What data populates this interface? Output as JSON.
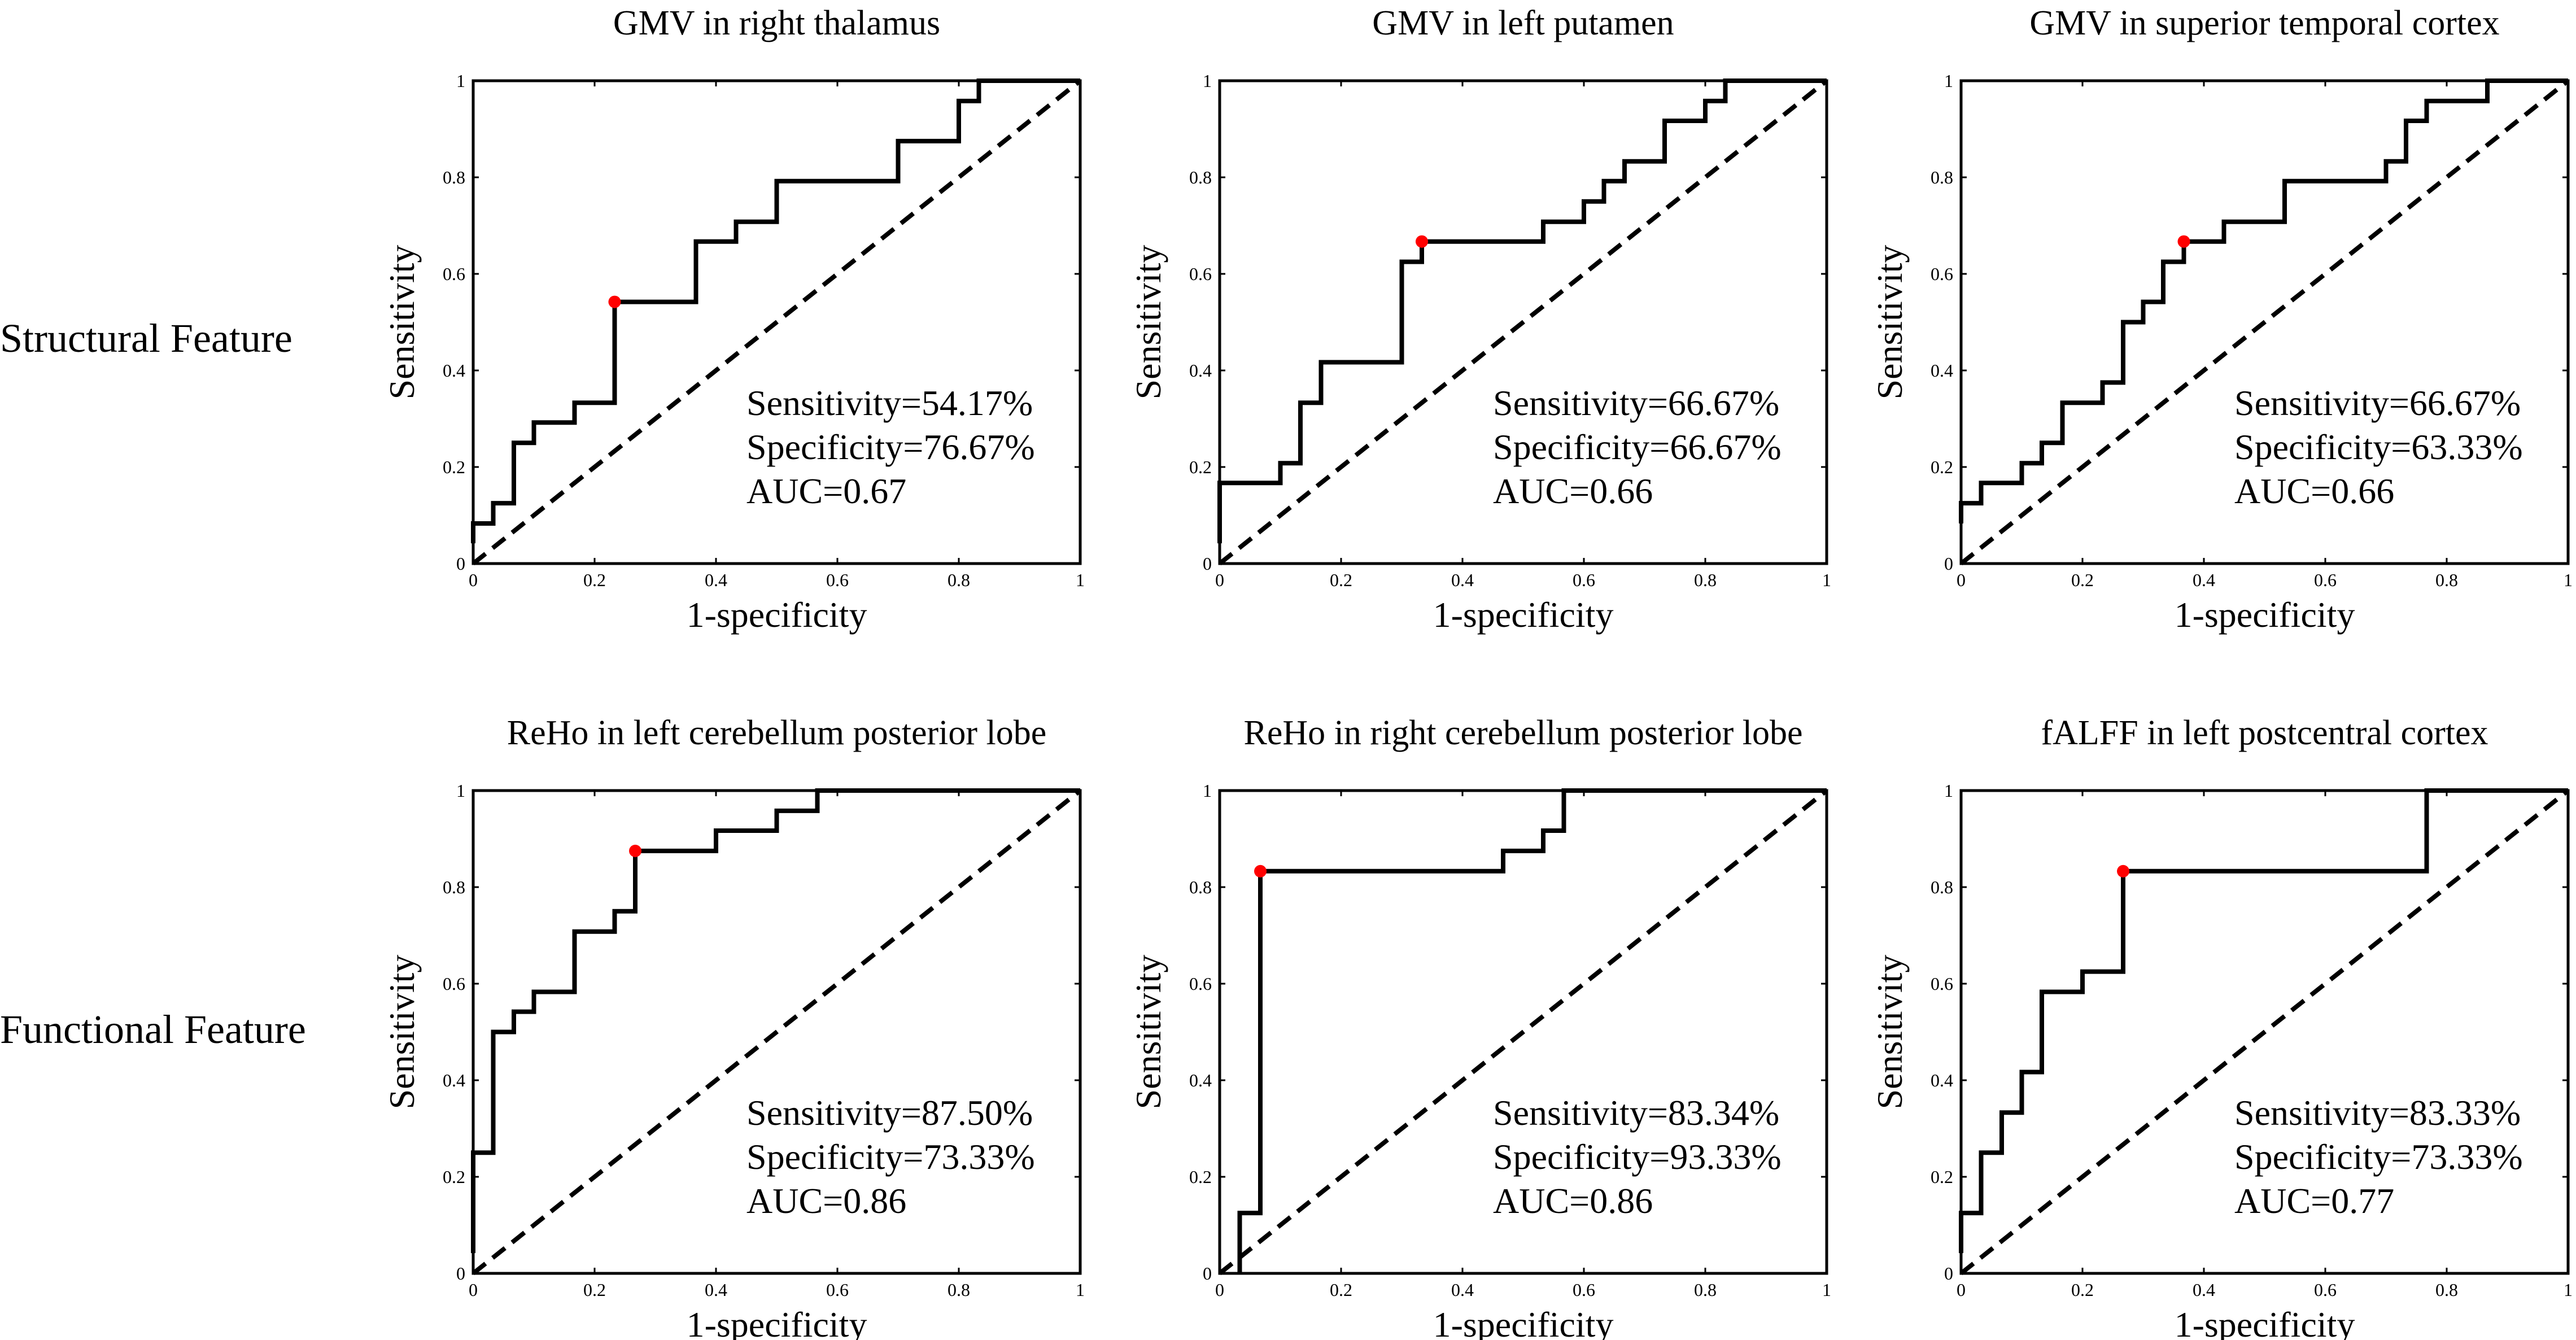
{
  "rows": [
    {
      "label": "Structural Feature"
    },
    {
      "label": "Functional Feature"
    }
  ],
  "colors": {
    "roc_curve": "#000000",
    "chance_line": "#000000",
    "cutoff_point": "#ff0000",
    "background": "#ffffff"
  },
  "chart_data": [
    {
      "type": "line",
      "title": "GMV in right thalamus",
      "xlabel": "1-specificity",
      "ylabel": "Sensitivity",
      "xlim": [
        0,
        1
      ],
      "ylim": [
        0,
        1
      ],
      "xticks": [
        "0",
        "0.2",
        "0.4",
        "0.6",
        "0.8",
        "1"
      ],
      "yticks": [
        "0",
        "0.2",
        "0.4",
        "0.6",
        "0.8",
        "1"
      ],
      "series": [
        {
          "name": "ROC",
          "x": [
            0,
            0,
            0.033,
            0.033,
            0.067,
            0.067,
            0.1,
            0.1,
            0.167,
            0.167,
            0.233,
            0.233,
            0.367,
            0.367,
            0.433,
            0.433,
            0.5,
            0.5,
            0.7,
            0.7,
            0.8,
            0.8,
            0.833,
            0.833,
            1
          ],
          "y": [
            0.042,
            0.083,
            0.083,
            0.125,
            0.125,
            0.25,
            0.25,
            0.292,
            0.292,
            0.333,
            0.333,
            0.542,
            0.542,
            0.667,
            0.667,
            0.708,
            0.708,
            0.792,
            0.792,
            0.875,
            0.875,
            0.958,
            0.958,
            1,
            1
          ]
        },
        {
          "name": "Chance",
          "x": [
            0,
            1
          ],
          "y": [
            0,
            1
          ]
        }
      ],
      "cutoff": {
        "x": 0.233,
        "y": 0.542
      },
      "stats": {
        "sensitivity": "Sensitivity=54.17%",
        "specificity": "Specificity=76.67%",
        "auc": "AUC=0.67"
      }
    },
    {
      "type": "line",
      "title": "GMV in left putamen",
      "xlabel": "1-specificity",
      "ylabel": "Sensitivity",
      "xlim": [
        0,
        1
      ],
      "ylim": [
        0,
        1
      ],
      "xticks": [
        "0",
        "0.2",
        "0.4",
        "0.6",
        "0.8",
        "1"
      ],
      "yticks": [
        "0",
        "0.2",
        "0.4",
        "0.6",
        "0.8",
        "1"
      ],
      "series": [
        {
          "name": "ROC",
          "x": [
            0,
            0,
            0.1,
            0.1,
            0.133,
            0.133,
            0.167,
            0.167,
            0.3,
            0.3,
            0.333,
            0.333,
            0.533,
            0.533,
            0.6,
            0.6,
            0.633,
            0.633,
            0.667,
            0.667,
            0.733,
            0.733,
            0.8,
            0.8,
            0.833,
            0.833,
            1
          ],
          "y": [
            0.042,
            0.167,
            0.167,
            0.208,
            0.208,
            0.333,
            0.333,
            0.417,
            0.417,
            0.625,
            0.625,
            0.667,
            0.667,
            0.708,
            0.708,
            0.75,
            0.75,
            0.792,
            0.792,
            0.833,
            0.833,
            0.917,
            0.917,
            0.958,
            0.958,
            1,
            1
          ]
        },
        {
          "name": "Chance",
          "x": [
            0,
            1
          ],
          "y": [
            0,
            1
          ]
        }
      ],
      "cutoff": {
        "x": 0.333,
        "y": 0.667
      },
      "stats": {
        "sensitivity": "Sensitivity=66.67%",
        "specificity": "Specificity=66.67%",
        "auc": "AUC=0.66"
      }
    },
    {
      "type": "line",
      "title": "GMV in superior temporal cortex",
      "xlabel": "1-specificity",
      "ylabel": "Sensitivity",
      "xlim": [
        0,
        1
      ],
      "ylim": [
        0,
        1
      ],
      "xticks": [
        "0",
        "0.2",
        "0.4",
        "0.6",
        "0.8",
        "1"
      ],
      "yticks": [
        "0",
        "0.2",
        "0.4",
        "0.6",
        "0.8",
        "1"
      ],
      "series": [
        {
          "name": "ROC",
          "x": [
            0,
            0,
            0.033,
            0.033,
            0.1,
            0.1,
            0.133,
            0.133,
            0.167,
            0.167,
            0.233,
            0.233,
            0.267,
            0.267,
            0.3,
            0.3,
            0.333,
            0.333,
            0.367,
            0.367,
            0.433,
            0.433,
            0.533,
            0.533,
            0.7,
            0.7,
            0.733,
            0.733,
            0.767,
            0.767,
            0.867,
            0.867,
            1
          ],
          "y": [
            0.083,
            0.125,
            0.125,
            0.167,
            0.167,
            0.208,
            0.208,
            0.25,
            0.25,
            0.333,
            0.333,
            0.375,
            0.375,
            0.5,
            0.5,
            0.542,
            0.542,
            0.625,
            0.625,
            0.667,
            0.667,
            0.708,
            0.708,
            0.792,
            0.792,
            0.833,
            0.833,
            0.917,
            0.917,
            0.958,
            0.958,
            1,
            1
          ]
        },
        {
          "name": "Chance",
          "x": [
            0,
            1
          ],
          "y": [
            0,
            1
          ]
        }
      ],
      "cutoff": {
        "x": 0.367,
        "y": 0.667
      },
      "stats": {
        "sensitivity": "Sensitivity=66.67%",
        "specificity": "Specificity=63.33%",
        "auc": "AUC=0.66"
      }
    },
    {
      "type": "line",
      "title": "ReHo in left cerebellum posterior lobe",
      "xlabel": "1-specificity",
      "ylabel": "Sensitivity",
      "xlim": [
        0,
        1
      ],
      "ylim": [
        0,
        1
      ],
      "xticks": [
        "0",
        "0.2",
        "0.4",
        "0.6",
        "0.8",
        "1"
      ],
      "yticks": [
        "0",
        "0.2",
        "0.4",
        "0.6",
        "0.8",
        "1"
      ],
      "series": [
        {
          "name": "ROC",
          "x": [
            0,
            0,
            0.033,
            0.033,
            0.067,
            0.067,
            0.1,
            0.1,
            0.167,
            0.167,
            0.233,
            0.233,
            0.267,
            0.267,
            0.4,
            0.4,
            0.5,
            0.5,
            0.567,
            0.567,
            1
          ],
          "y": [
            0.042,
            0.25,
            0.25,
            0.5,
            0.5,
            0.542,
            0.542,
            0.583,
            0.583,
            0.708,
            0.708,
            0.75,
            0.75,
            0.875,
            0.875,
            0.917,
            0.917,
            0.958,
            0.958,
            1,
            1
          ]
        },
        {
          "name": "Chance",
          "x": [
            0,
            1
          ],
          "y": [
            0,
            1
          ]
        }
      ],
      "cutoff": {
        "x": 0.267,
        "y": 0.875
      },
      "stats": {
        "sensitivity": "Sensitivity=87.50%",
        "specificity": "Specificity=73.33%",
        "auc": "AUC=0.86"
      }
    },
    {
      "type": "line",
      "title": "ReHo in right cerebellum posterior lobe",
      "xlabel": "1-specificity",
      "ylabel": "Sensitivity",
      "xlim": [
        0,
        1
      ],
      "ylim": [
        0,
        1
      ],
      "xticks": [
        "0",
        "0.2",
        "0.4",
        "0.6",
        "0.8",
        "1"
      ],
      "yticks": [
        "0",
        "0.2",
        "0.4",
        "0.6",
        "0.8",
        "1"
      ],
      "series": [
        {
          "name": "ROC",
          "x": [
            0.033,
            0.033,
            0.067,
            0.067,
            0.467,
            0.467,
            0.533,
            0.533,
            0.567,
            0.567,
            1
          ],
          "y": [
            0,
            0.125,
            0.125,
            0.833,
            0.833,
            0.875,
            0.875,
            0.917,
            0.917,
            1,
            1
          ]
        },
        {
          "name": "Chance",
          "x": [
            0,
            1
          ],
          "y": [
            0,
            1
          ]
        }
      ],
      "cutoff": {
        "x": 0.067,
        "y": 0.833
      },
      "stats": {
        "sensitivity": "Sensitivity=83.34%",
        "specificity": "Specificity=93.33%",
        "auc": "AUC=0.86"
      }
    },
    {
      "type": "line",
      "title": "fALFF in left postcentral cortex",
      "xlabel": "1-specificity",
      "ylabel": "Sensitivity",
      "xlim": [
        0,
        1
      ],
      "ylim": [
        0,
        1
      ],
      "xticks": [
        "0",
        "0.2",
        "0.4",
        "0.6",
        "0.8",
        "1"
      ],
      "yticks": [
        "0",
        "0.2",
        "0.4",
        "0.6",
        "0.8",
        "1"
      ],
      "series": [
        {
          "name": "ROC",
          "x": [
            0,
            0,
            0.033,
            0.033,
            0.067,
            0.067,
            0.1,
            0.1,
            0.133,
            0.133,
            0.2,
            0.2,
            0.267,
            0.267,
            0.767,
            0.767,
            1
          ],
          "y": [
            0.042,
            0.125,
            0.125,
            0.25,
            0.25,
            0.333,
            0.333,
            0.417,
            0.417,
            0.583,
            0.583,
            0.625,
            0.625,
            0.833,
            0.833,
            1,
            1
          ]
        },
        {
          "name": "Chance",
          "x": [
            0,
            1
          ],
          "y": [
            0,
            1
          ]
        }
      ],
      "cutoff": {
        "x": 0.267,
        "y": 0.833
      },
      "stats": {
        "sensitivity": "Sensitivity=83.33%",
        "specificity": "Specificity=73.33%",
        "auc": "AUC=0.77"
      }
    }
  ]
}
